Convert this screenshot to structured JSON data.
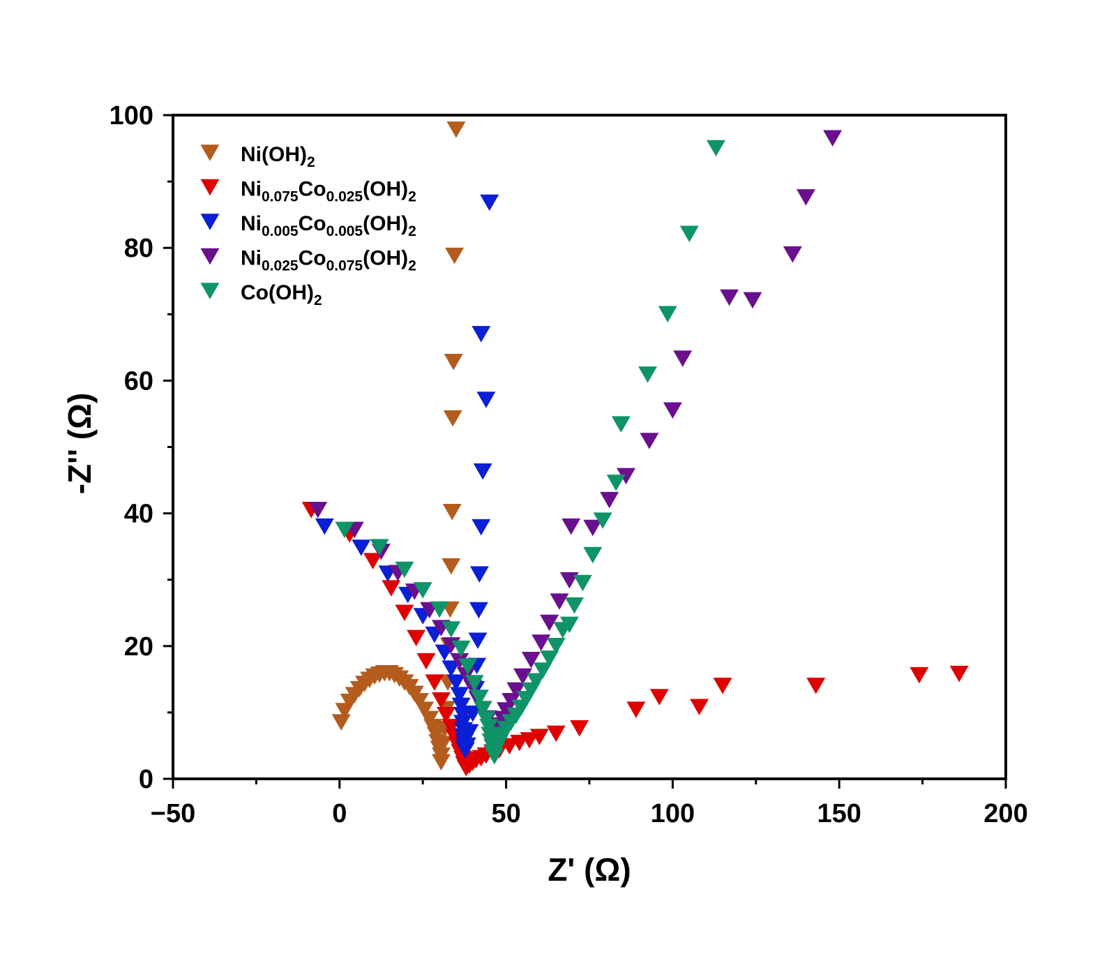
{
  "chart_data": {
    "type": "scatter",
    "title": "",
    "xlabel": "Z' (Ω)",
    "ylabel": "-Z'' (Ω)",
    "xlim": [
      -50,
      200
    ],
    "ylim": [
      0,
      100
    ],
    "x_ticks": [
      -50,
      0,
      50,
      100,
      150,
      200
    ],
    "y_ticks": [
      0,
      20,
      40,
      60,
      80,
      100
    ],
    "x_tick_labels": [
      "−50",
      "0",
      "50",
      "100",
      "150",
      "200"
    ],
    "y_tick_labels": [
      "0",
      "20",
      "40",
      "60",
      "80",
      "100"
    ],
    "grid": false,
    "legend_position": "top-left",
    "marker": "triangle-down",
    "series": [
      {
        "name": "Ni(OH)2",
        "label_parts": [
          {
            "t": "Ni(OH)"
          },
          {
            "t": "2",
            "sub": true
          }
        ],
        "color": "#b35c1e",
        "points": [
          [
            0.5,
            8.5
          ],
          [
            1.5,
            10.2
          ],
          [
            3,
            11.6
          ],
          [
            4.5,
            12.6
          ],
          [
            6,
            13.5
          ],
          [
            7.5,
            14.3
          ],
          [
            9,
            14.9
          ],
          [
            10.5,
            15.4
          ],
          [
            12,
            15.7
          ],
          [
            13.5,
            15.9
          ],
          [
            15,
            15.9
          ],
          [
            16.5,
            15.6
          ],
          [
            18,
            15.1
          ],
          [
            19.5,
            14.5
          ],
          [
            21,
            13.8
          ],
          [
            22.5,
            12.8
          ],
          [
            24,
            11.7
          ],
          [
            25.5,
            10.4
          ],
          [
            27,
            9.0
          ],
          [
            28,
            7.8
          ],
          [
            29,
            6.6
          ],
          [
            29.5,
            5.5
          ],
          [
            30,
            4.5
          ],
          [
            30.5,
            3.5
          ],
          [
            30.5,
            2.5
          ],
          [
            31,
            5.2
          ],
          [
            31.5,
            7.5
          ],
          [
            32,
            10.5
          ],
          [
            32.5,
            14.5
          ],
          [
            33,
            20.0
          ],
          [
            33.2,
            25.5
          ],
          [
            33.5,
            32.0
          ],
          [
            33.8,
            40.2
          ],
          [
            34,
            54.3
          ],
          [
            34.2,
            62.8
          ],
          [
            34.5,
            78.8
          ],
          [
            35,
            97.8
          ]
        ]
      },
      {
        "name": "Ni0.075Co0.025(OH)2",
        "label_parts": [
          {
            "t": "Ni"
          },
          {
            "t": "0.075",
            "sub": true
          },
          {
            "t": "Co"
          },
          {
            "t": "0.025",
            "sub": true
          },
          {
            "t": "(OH)"
          },
          {
            "t": "2",
            "sub": true
          }
        ],
        "color": "#e00000",
        "points": [
          [
            -8.5,
            40.5
          ],
          [
            3,
            36.8
          ],
          [
            10,
            32.8
          ],
          [
            15.5,
            28.7
          ],
          [
            19.5,
            25.0
          ],
          [
            23,
            21.2
          ],
          [
            26,
            17.7
          ],
          [
            28.5,
            14.5
          ],
          [
            30.5,
            11.8
          ],
          [
            32,
            9.6
          ],
          [
            33.5,
            7.8
          ],
          [
            34.5,
            6.3
          ],
          [
            35.5,
            5.0
          ],
          [
            36.2,
            4.0
          ],
          [
            37,
            3.0
          ],
          [
            37.5,
            2.2
          ],
          [
            38,
            1.6
          ],
          [
            39,
            2.0
          ],
          [
            40,
            2.4
          ],
          [
            41,
            2.8
          ],
          [
            42.5,
            3.1
          ],
          [
            44,
            3.5
          ],
          [
            46,
            3.9
          ],
          [
            48,
            4.3
          ],
          [
            51,
            4.9
          ],
          [
            54,
            5.4
          ],
          [
            57,
            5.8
          ],
          [
            60,
            6.3
          ],
          [
            65,
            6.8
          ],
          [
            72,
            7.6
          ],
          [
            89,
            10.4
          ],
          [
            96,
            12.3
          ],
          [
            108,
            10.8
          ],
          [
            115,
            14.0
          ],
          [
            143,
            14.0
          ],
          [
            174,
            15.6
          ],
          [
            186,
            15.8
          ]
        ]
      },
      {
        "name": "Ni0.005Co0.005(OH)2",
        "label_parts": [
          {
            "t": "Ni"
          },
          {
            "t": "0.005",
            "sub": true
          },
          {
            "t": "Co"
          },
          {
            "t": "0.005",
            "sub": true
          },
          {
            "t": "(OH)"
          },
          {
            "t": "2",
            "sub": true
          }
        ],
        "color": "#0a1fd6",
        "points": [
          [
            -4.5,
            38.0
          ],
          [
            6.5,
            34.8
          ],
          [
            14.5,
            30.9
          ],
          [
            20.5,
            27.7
          ],
          [
            25,
            24.5
          ],
          [
            28.5,
            21.7
          ],
          [
            31.5,
            19.0
          ],
          [
            33.5,
            16.6
          ],
          [
            35,
            14.5
          ],
          [
            36,
            12.6
          ],
          [
            36.5,
            11.0
          ],
          [
            37,
            9.6
          ],
          [
            37,
            8.4
          ],
          [
            37.2,
            7.3
          ],
          [
            37.3,
            6.4
          ],
          [
            37.5,
            5.6
          ],
          [
            37.5,
            4.9
          ],
          [
            37.8,
            4.3
          ],
          [
            38.2,
            5.0
          ],
          [
            39,
            7.0
          ],
          [
            40,
            9.8
          ],
          [
            40.8,
            13.5
          ],
          [
            41.2,
            17.0
          ],
          [
            41.5,
            20.8
          ],
          [
            41.8,
            25.4
          ],
          [
            42,
            30.8
          ],
          [
            42.5,
            37.9
          ],
          [
            43,
            46.3
          ],
          [
            44,
            57.1
          ],
          [
            42.5,
            67.0
          ],
          [
            45,
            86.8
          ]
        ]
      },
      {
        "name": "Ni0.025Co0.075(OH)2",
        "label_parts": [
          {
            "t": "Ni"
          },
          {
            "t": "0.025",
            "sub": true
          },
          {
            "t": "Co"
          },
          {
            "t": "0.075",
            "sub": true
          },
          {
            "t": "(OH)"
          },
          {
            "t": "2",
            "sub": true
          }
        ],
        "color": "#6a0f8e",
        "points": [
          [
            -6.5,
            40.5
          ],
          [
            4.5,
            37.5
          ],
          [
            12.5,
            34.2
          ],
          [
            17.5,
            31.0
          ],
          [
            22.5,
            28.2
          ],
          [
            27,
            25.4
          ],
          [
            30.5,
            22.7
          ],
          [
            33.5,
            20.1
          ],
          [
            36,
            17.7
          ],
          [
            38,
            15.6
          ],
          [
            40,
            13.7
          ],
          [
            41.5,
            12.0
          ],
          [
            43,
            10.5
          ],
          [
            44.5,
            9.1
          ],
          [
            45.5,
            8.0
          ],
          [
            46.5,
            7.2
          ],
          [
            47.5,
            8.0
          ],
          [
            49,
            9.0
          ],
          [
            50,
            10.3
          ],
          [
            51.5,
            11.7
          ],
          [
            53,
            13.3
          ],
          [
            55,
            15.4
          ],
          [
            57.5,
            17.9
          ],
          [
            60.5,
            20.5
          ],
          [
            63,
            23.5
          ],
          [
            66,
            26.7
          ],
          [
            69,
            29.9
          ],
          [
            69.5,
            38.0
          ],
          [
            76,
            37.8
          ],
          [
            81,
            42.0
          ],
          [
            86,
            45.6
          ],
          [
            93,
            50.9
          ],
          [
            100,
            55.5
          ],
          [
            103,
            63.3
          ],
          [
            117,
            72.5
          ],
          [
            124,
            72.1
          ],
          [
            136,
            79.0
          ],
          [
            140,
            87.6
          ],
          [
            148,
            96.5
          ]
        ]
      },
      {
        "name": "Co(OH)2",
        "label_parts": [
          {
            "t": "Co(OH)"
          },
          {
            "t": "2",
            "sub": true
          }
        ],
        "color": "#0e9468",
        "points": [
          [
            1.5,
            37.5
          ],
          [
            12,
            34.9
          ],
          [
            19.5,
            31.5
          ],
          [
            25,
            28.4
          ],
          [
            30,
            25.5
          ],
          [
            33.5,
            22.5
          ],
          [
            36.5,
            19.6
          ],
          [
            38.5,
            16.9
          ],
          [
            40.5,
            14.4
          ],
          [
            42,
            12.2
          ],
          [
            43,
            10.5
          ],
          [
            44,
            9.0
          ],
          [
            44.8,
            7.8
          ],
          [
            45.2,
            6.6
          ],
          [
            45.5,
            5.6
          ],
          [
            46,
            4.8
          ],
          [
            46.2,
            4.0
          ],
          [
            46.5,
            3.4
          ],
          [
            47,
            4.5
          ],
          [
            48,
            5.5
          ],
          [
            49,
            6.5
          ],
          [
            50,
            7.5
          ],
          [
            51.5,
            8.5
          ],
          [
            53,
            9.5
          ],
          [
            54.5,
            10.7
          ],
          [
            56,
            12.0
          ],
          [
            57.5,
            13.3
          ],
          [
            59,
            14.7
          ],
          [
            61,
            16.3
          ],
          [
            63,
            18.1
          ],
          [
            65,
            20.0
          ],
          [
            67,
            22.4
          ],
          [
            69,
            23.2
          ],
          [
            70.5,
            26.1
          ],
          [
            73,
            29.5
          ],
          [
            76,
            33.7
          ],
          [
            79,
            38.9
          ],
          [
            83,
            44.6
          ],
          [
            84.5,
            53.4
          ],
          [
            92.5,
            60.9
          ],
          [
            98.5,
            70.0
          ],
          [
            105,
            82.1
          ],
          [
            113,
            95.0
          ]
        ]
      }
    ]
  }
}
